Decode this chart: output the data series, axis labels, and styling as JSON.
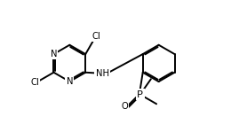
{
  "background_color": "#ffffff",
  "line_color": "#000000",
  "line_width": 1.4,
  "font_size": 7.2,
  "fig_width": 2.6,
  "fig_height": 1.58,
  "dpi": 100,
  "xlim": [
    0,
    8.5
  ],
  "ylim": [
    0,
    5.2
  ]
}
